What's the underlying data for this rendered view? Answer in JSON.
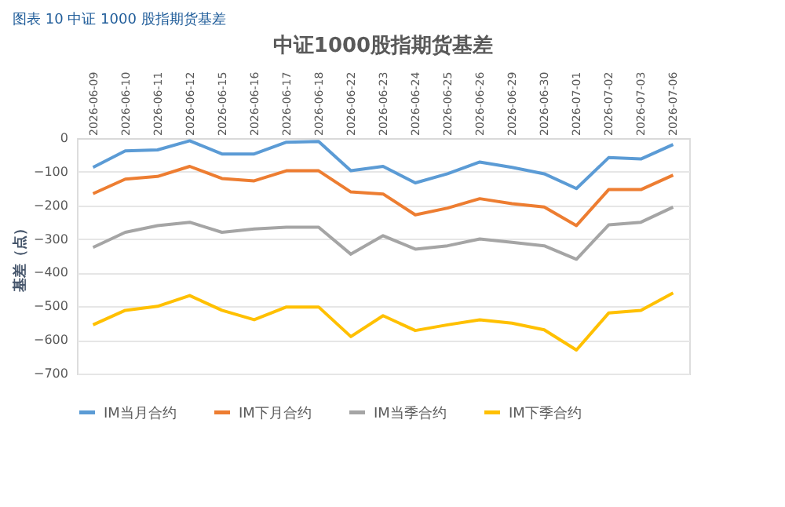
{
  "chart_data": {
    "type": "line",
    "title": "中证1000股指期货基差",
    "annotations": [
      "图表 10 中证 1000 股指期货基差"
    ],
    "ylabel": "基差（点）",
    "categories": [
      "2026-06-09",
      "2026-06-10",
      "2026-06-11",
      "2026-06-12",
      "2026-06-15",
      "2026-06-16",
      "2026-06-17",
      "2026-06-18",
      "2026-06-22",
      "2026-06-23",
      "2026-06-24",
      "2026-06-25",
      "2026-06-26",
      "2026-06-29",
      "2026-06-30",
      "2026-07-01",
      "2026-07-02",
      "2026-07-03",
      "2026-07-06"
    ],
    "series": [
      {
        "name": "IM当月合约",
        "color": "#5b9bd5",
        "values": [
          -87,
          -38,
          -35,
          -8,
          -47,
          -47,
          -12,
          -10,
          -97,
          -84,
          -133,
          -106,
          -71,
          -87,
          -106,
          -150,
          -58,
          -62,
          -19
        ]
      },
      {
        "name": "IM下月合约",
        "color": "#ed7d31",
        "values": [
          -165,
          -122,
          -114,
          -84,
          -120,
          -127,
          -97,
          -97,
          -160,
          -166,
          -228,
          -208,
          -180,
          -195,
          -205,
          -260,
          -153,
          -153,
          -110
        ]
      },
      {
        "name": "IM当季合约",
        "color": "#a5a5a5",
        "values": [
          -325,
          -280,
          -260,
          -250,
          -280,
          -270,
          -265,
          -265,
          -345,
          -290,
          -330,
          -320,
          -300,
          -310,
          -320,
          -360,
          -258,
          -250,
          -205
        ]
      },
      {
        "name": "IM下季合约",
        "color": "#ffc000",
        "values": [
          -555,
          -512,
          -500,
          -468,
          -512,
          -540,
          -502,
          -502,
          -590,
          -528,
          -572,
          -555,
          -540,
          -550,
          -570,
          -630,
          -520,
          -512,
          -460
        ]
      }
    ],
    "ylim": [
      -700,
      0
    ],
    "yticks": [
      -700,
      -600,
      -500,
      -400,
      -300,
      -200,
      -100,
      0
    ],
    "grid": "y",
    "legend": "bottom",
    "line_style": "solid",
    "marker": "none"
  }
}
